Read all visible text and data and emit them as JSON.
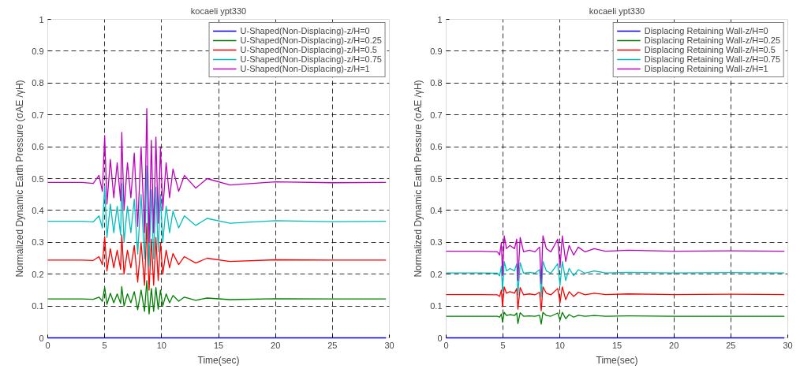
{
  "chart_data": [
    {
      "type": "line",
      "title": "kocaeli ypt330",
      "xlabel": "Time(sec)",
      "ylabel": "Normalized Dynamic Earth Pressure (σAE /γH)",
      "xlim": [
        0,
        30
      ],
      "ylim": [
        0,
        1
      ],
      "xticks": [
        0,
        5,
        10,
        15,
        20,
        25,
        30
      ],
      "yticks": [
        0,
        0.1,
        0.2,
        0.3,
        0.4,
        0.5,
        0.6,
        0.7,
        0.8,
        0.9,
        1
      ],
      "grid": true,
      "legend": "top right",
      "line_style": "solid",
      "marker": "none",
      "x": [
        0,
        3,
        4,
        4.5,
        4.8,
        5.0,
        5.2,
        5.5,
        5.8,
        6.1,
        6.4,
        6.5,
        6.7,
        7.0,
        7.3,
        7.6,
        7.9,
        8.2,
        8.5,
        8.7,
        8.9,
        9.1,
        9.3,
        9.5,
        9.7,
        9.9,
        10.1,
        10.4,
        10.7,
        11.0,
        11.5,
        12,
        13,
        14,
        16,
        20,
        25,
        29.7
      ],
      "series": [
        {
          "name": "U-Shaped(Non-Displacing)-z/H=0",
          "color": "#0000ff",
          "values": [
            0,
            0,
            0,
            0,
            0,
            0,
            0,
            0,
            0,
            0,
            0,
            0,
            0,
            0,
            0,
            0,
            0,
            0,
            0,
            0,
            0,
            0,
            0,
            0,
            0,
            0,
            0,
            0,
            0,
            0,
            0,
            0,
            0,
            0,
            0,
            0,
            0,
            0
          ]
        },
        {
          "name": "U-Shaped(Non-Displacing)-z/H=0.25",
          "color": "#008000",
          "values": [
            0.122,
            0.122,
            0.121,
            0.128,
            0.115,
            0.159,
            0.105,
            0.14,
            0.11,
            0.138,
            0.108,
            0.161,
            0.1,
            0.138,
            0.11,
            0.145,
            0.088,
            0.15,
            0.083,
            0.18,
            0.075,
            0.155,
            0.083,
            0.158,
            0.09,
            0.15,
            0.1,
            0.138,
            0.11,
            0.133,
            0.115,
            0.128,
            0.118,
            0.125,
            0.12,
            0.123,
            0.122,
            0.122
          ]
        },
        {
          "name": "U-Shaped(Non-Displacing)-z/H=0.5",
          "color": "#ff0000",
          "values": [
            0.244,
            0.244,
            0.243,
            0.255,
            0.23,
            0.318,
            0.21,
            0.28,
            0.22,
            0.275,
            0.215,
            0.323,
            0.2,
            0.275,
            0.22,
            0.29,
            0.175,
            0.3,
            0.165,
            0.36,
            0.15,
            0.31,
            0.165,
            0.315,
            0.18,
            0.3,
            0.2,
            0.275,
            0.22,
            0.265,
            0.23,
            0.255,
            0.235,
            0.25,
            0.24,
            0.245,
            0.244,
            0.244
          ]
        },
        {
          "name": "U-Shaped(Non-Displacing)-z/H=0.75",
          "color": "#00bfbf",
          "values": [
            0.366,
            0.366,
            0.364,
            0.383,
            0.345,
            0.476,
            0.315,
            0.42,
            0.33,
            0.413,
            0.323,
            0.484,
            0.3,
            0.413,
            0.33,
            0.435,
            0.263,
            0.45,
            0.248,
            0.54,
            0.225,
            0.465,
            0.248,
            0.473,
            0.27,
            0.45,
            0.3,
            0.413,
            0.33,
            0.398,
            0.345,
            0.383,
            0.353,
            0.375,
            0.36,
            0.368,
            0.365,
            0.366
          ]
        },
        {
          "name": "U-Shaped(Non-Displacing)-z/H=1",
          "color": "#bf00bf",
          "values": [
            0.488,
            0.488,
            0.485,
            0.51,
            0.46,
            0.635,
            0.42,
            0.56,
            0.44,
            0.55,
            0.43,
            0.645,
            0.4,
            0.55,
            0.44,
            0.58,
            0.35,
            0.6,
            0.33,
            0.72,
            0.3,
            0.62,
            0.33,
            0.63,
            0.36,
            0.6,
            0.4,
            0.55,
            0.44,
            0.53,
            0.46,
            0.51,
            0.47,
            0.5,
            0.48,
            0.49,
            0.487,
            0.488
          ]
        }
      ]
    },
    {
      "type": "line",
      "title": "kocaeli ypt330",
      "xlabel": "Time(sec)",
      "ylabel": "Normalized Dynamic Earth Pressure (σAE /γH)",
      "xlim": [
        0,
        30
      ],
      "ylim": [
        0,
        1
      ],
      "xticks": [
        0,
        5,
        10,
        15,
        20,
        25,
        30
      ],
      "yticks": [
        0,
        0.1,
        0.2,
        0.3,
        0.4,
        0.5,
        0.6,
        0.7,
        0.8,
        0.9,
        1
      ],
      "grid": true,
      "legend": "top right",
      "line_style": "solid",
      "marker": "none",
      "x": [
        0,
        3,
        4.5,
        4.7,
        4.85,
        4.95,
        5.1,
        5.3,
        5.6,
        6.0,
        6.2,
        6.3,
        6.5,
        6.8,
        7.3,
        7.8,
        8.2,
        8.35,
        8.5,
        8.8,
        9.2,
        9.8,
        10.0,
        10.2,
        10.5,
        10.8,
        11.2,
        11.6,
        12.2,
        13,
        14,
        16,
        20,
        25,
        29.7
      ],
      "series": [
        {
          "name": "Displacing Retaining Wall-z/H=0",
          "color": "#0000ff",
          "values": [
            0,
            0,
            0,
            0,
            0,
            0,
            0,
            0,
            0,
            0,
            0,
            0,
            0,
            0,
            0,
            0,
            0,
            0,
            0,
            0,
            0,
            0,
            0,
            0,
            0,
            0,
            0,
            0,
            0,
            0,
            0,
            0,
            0,
            0,
            0
          ]
        },
        {
          "name": "Displacing Retaining Wall-z/H=0.25",
          "color": "#008000",
          "values": [
            0.068,
            0.068,
            0.068,
            0.065,
            0.075,
            0.049,
            0.08,
            0.07,
            0.073,
            0.07,
            0.078,
            0.045,
            0.079,
            0.068,
            0.069,
            0.068,
            0.071,
            0.043,
            0.08,
            0.07,
            0.068,
            0.078,
            0.055,
            0.08,
            0.06,
            0.073,
            0.065,
            0.071,
            0.068,
            0.07,
            0.068,
            0.069,
            0.068,
            0.068,
            0.068
          ]
        },
        {
          "name": "Displacing Retaining Wall-z/H=0.5",
          "color": "#ff0000",
          "values": [
            0.136,
            0.136,
            0.135,
            0.13,
            0.15,
            0.098,
            0.16,
            0.14,
            0.145,
            0.14,
            0.155,
            0.09,
            0.158,
            0.135,
            0.138,
            0.135,
            0.143,
            0.085,
            0.16,
            0.14,
            0.135,
            0.155,
            0.11,
            0.16,
            0.12,
            0.145,
            0.13,
            0.143,
            0.135,
            0.14,
            0.136,
            0.138,
            0.136,
            0.137,
            0.136
          ]
        },
        {
          "name": "Displacing Retaining Wall-z/H=0.75",
          "color": "#00bfbf",
          "values": [
            0.204,
            0.204,
            0.203,
            0.195,
            0.225,
            0.146,
            0.24,
            0.21,
            0.218,
            0.21,
            0.233,
            0.135,
            0.236,
            0.203,
            0.206,
            0.203,
            0.214,
            0.128,
            0.24,
            0.21,
            0.203,
            0.233,
            0.165,
            0.24,
            0.18,
            0.218,
            0.195,
            0.214,
            0.203,
            0.21,
            0.204,
            0.206,
            0.204,
            0.205,
            0.204
          ]
        },
        {
          "name": "Displacing Retaining Wall-z/H=1",
          "color": "#bf00bf",
          "values": [
            0.272,
            0.272,
            0.27,
            0.26,
            0.3,
            0.195,
            0.32,
            0.28,
            0.29,
            0.28,
            0.31,
            0.18,
            0.315,
            0.27,
            0.275,
            0.27,
            0.285,
            0.17,
            0.32,
            0.28,
            0.27,
            0.31,
            0.22,
            0.32,
            0.24,
            0.29,
            0.26,
            0.285,
            0.27,
            0.28,
            0.272,
            0.275,
            0.272,
            0.273,
            0.272
          ]
        }
      ]
    }
  ]
}
